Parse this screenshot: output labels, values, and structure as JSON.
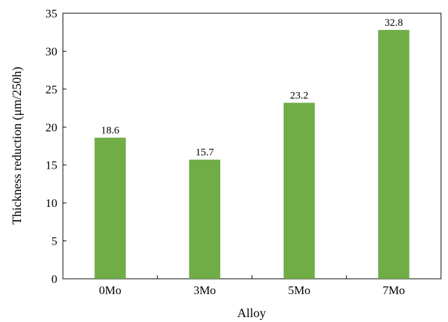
{
  "chart_data": {
    "type": "bar",
    "categories": [
      "0Mo",
      "3Mo",
      "5Mo",
      "7Mo"
    ],
    "values": [
      18.6,
      15.7,
      23.2,
      32.8
    ],
    "data_labels": [
      "18.6",
      "15.7",
      "23.2",
      "32.8"
    ],
    "xlabel": "Alloy",
    "ylabel": "Thickness reduction (μm/250h)",
    "ylim": [
      0,
      35
    ],
    "yticks": [
      0,
      5,
      10,
      15,
      20,
      25,
      30,
      35
    ],
    "bar_color": "#70ad47",
    "grid": false,
    "legend": "none"
  }
}
